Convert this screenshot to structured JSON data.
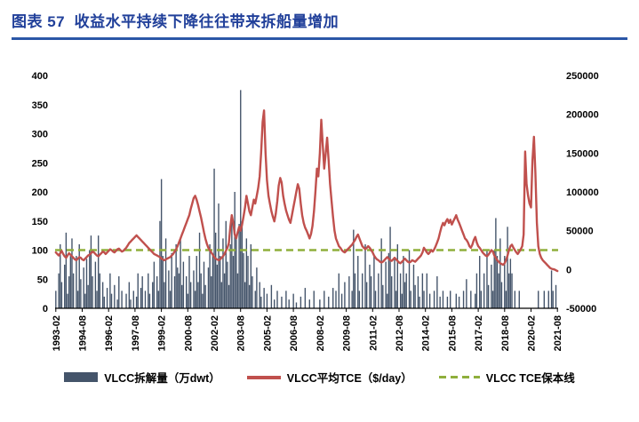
{
  "header": {
    "title": "图表 57  收益水平持续下降往往带来拆船量增加"
  },
  "legend": [
    {
      "label": "VLCC拆解量（万dwt）",
      "swatch": "bar"
    },
    {
      "label": "VLCC平均TCE（$/day）",
      "swatch": "line"
    },
    {
      "label": "VLCC TCE保本线",
      "swatch": "dashed"
    }
  ],
  "chart_data": {
    "type": "bar+line",
    "x_frequency": "monthly",
    "x_start": "1993-02",
    "x_end": "2021-08",
    "x_tick_step": 18,
    "x_ticks": [
      "1993-02",
      "1994-08",
      "1996-02",
      "1997-08",
      "1999-02",
      "2000-08",
      "2002-02",
      "2003-08",
      "2005-02",
      "2006-08",
      "2008-02",
      "2009-08",
      "2011-02",
      "2012-08",
      "2014-02",
      "2015-08",
      "2017-02",
      "2018-08",
      "2020-02",
      "2021-08"
    ],
    "left_axis": {
      "series": "VLCC拆解量（万dwt）",
      "min": 0,
      "max": 400,
      "ticks": [
        "400",
        "350",
        "300",
        "250",
        "200",
        "150",
        "100",
        "50",
        "0"
      ]
    },
    "right_axis": {
      "series": "VLCC平均TCE（$/day）",
      "min": -50000,
      "max": 250000,
      "ticks": [
        "250000",
        "200000",
        "150000",
        "100000",
        "50000",
        "0",
        "-50000"
      ]
    },
    "breakeven_value": 25000,
    "bar_values": [
      30,
      0,
      60,
      110,
      45,
      0,
      75,
      130,
      25,
      55,
      90,
      120,
      60,
      0,
      90,
      30,
      110,
      50,
      0,
      70,
      25,
      85,
      40,
      100,
      125,
      55,
      0,
      80,
      30,
      125,
      60,
      0,
      45,
      20,
      0,
      35,
      0,
      60,
      25,
      0,
      40,
      0,
      15,
      55,
      0,
      30,
      0,
      0,
      25,
      0,
      45,
      15,
      0,
      30,
      0,
      20,
      60,
      0,
      35,
      55,
      0,
      30,
      0,
      60,
      25,
      0,
      45,
      80,
      0,
      55,
      30,
      150,
      222,
      90,
      45,
      120,
      0,
      65,
      30,
      95,
      0,
      55,
      110,
      70,
      60,
      120,
      40,
      80,
      0,
      55,
      25,
      90,
      45,
      0,
      65,
      30,
      90,
      45,
      130,
      60,
      25,
      80,
      40,
      0,
      70,
      110,
      55,
      95,
      240,
      130,
      75,
      180,
      90,
      45,
      120,
      60,
      150,
      80,
      40,
      110,
      160,
      90,
      200,
      120,
      60,
      145,
      375,
      150,
      95,
      45,
      120,
      90,
      40,
      110,
      55,
      0,
      30,
      70,
      0,
      45,
      20,
      0,
      35,
      0,
      25,
      0,
      0,
      40,
      0,
      15,
      0,
      30,
      0,
      0,
      20,
      0,
      0,
      30,
      0,
      15,
      0,
      0,
      25,
      0,
      10,
      0,
      0,
      20,
      0,
      0,
      35,
      0,
      0,
      15,
      0,
      0,
      30,
      0,
      0,
      0,
      15,
      0,
      0,
      30,
      0,
      0,
      20,
      0,
      0,
      35,
      0,
      30,
      0,
      60,
      0,
      25,
      0,
      45,
      0,
      0,
      55,
      0,
      30,
      135,
      60,
      0,
      90,
      30,
      0,
      60,
      0,
      110,
      45,
      0,
      75,
      55,
      0,
      90,
      30,
      0,
      60,
      0,
      120,
      40,
      0,
      80,
      25,
      95,
      140,
      55,
      0,
      85,
      30,
      110,
      0,
      60,
      25,
      90,
      45,
      60,
      0,
      100,
      30,
      0,
      75,
      40,
      0,
      55,
      20,
      0,
      60,
      30,
      0,
      60,
      0,
      25,
      0,
      0,
      30,
      0,
      55,
      0,
      20,
      0,
      30,
      0,
      0,
      20,
      0,
      30,
      0,
      0,
      0,
      25,
      0,
      20,
      0,
      0,
      30,
      0,
      50,
      0,
      0,
      30,
      0,
      0,
      25,
      60,
      0,
      90,
      30,
      0,
      60,
      0,
      100,
      40,
      0,
      75,
      30,
      100,
      155,
      90,
      60,
      120,
      45,
      0,
      90,
      30,
      140,
      60,
      85,
      60,
      0,
      30,
      0,
      0,
      30,
      0,
      0,
      0,
      0,
      0,
      0,
      0,
      0,
      0,
      0,
      0,
      0,
      30,
      0,
      0,
      0,
      30,
      0,
      0,
      30,
      0,
      65,
      30,
      0,
      40,
      0
    ],
    "tce_values": [
      22000,
      20000,
      18000,
      21000,
      24000,
      20000,
      17000,
      15000,
      18000,
      21000,
      19000,
      17000,
      15000,
      13000,
      12000,
      14000,
      16000,
      15000,
      13000,
      12000,
      14000,
      16000,
      18000,
      19000,
      21000,
      23000,
      22000,
      20000,
      18000,
      17000,
      19000,
      21000,
      23000,
      22000,
      20000,
      22000,
      24000,
      26000,
      25000,
      23000,
      22000,
      24000,
      26000,
      27000,
      25000,
      23000,
      24000,
      26000,
      28000,
      31000,
      34000,
      36000,
      38000,
      40000,
      42000,
      44000,
      42000,
      40000,
      38000,
      36000,
      34000,
      32000,
      30000,
      28000,
      26000,
      24000,
      22000,
      20000,
      19000,
      18000,
      17000,
      16000,
      14000,
      13000,
      12000,
      13000,
      14000,
      15000,
      16000,
      18000,
      20000,
      23000,
      26000,
      30000,
      35000,
      40000,
      45000,
      50000,
      55000,
      60000,
      65000,
      70000,
      78000,
      85000,
      92000,
      95000,
      90000,
      83000,
      75000,
      67000,
      58000,
      48000,
      40000,
      33000,
      28000,
      25000,
      22000,
      19000,
      16000,
      14000,
      13000,
      12000,
      13000,
      15000,
      17000,
      20000,
      24000,
      28000,
      34000,
      55000,
      70000,
      60000,
      45000,
      40000,
      48000,
      55000,
      50000,
      58000,
      68000,
      80000,
      95000,
      85000,
      75000,
      70000,
      80000,
      90000,
      85000,
      95000,
      105000,
      120000,
      150000,
      190000,
      205000,
      150000,
      115000,
      95000,
      85000,
      75000,
      68000,
      62000,
      72000,
      88000,
      108000,
      118000,
      112000,
      95000,
      85000,
      76000,
      70000,
      64000,
      60000,
      70000,
      80000,
      90000,
      100000,
      110000,
      104000,
      85000,
      70000,
      60000,
      54000,
      50000,
      45000,
      40000,
      46000,
      56000,
      75000,
      100000,
      130000,
      120000,
      150000,
      193000,
      160000,
      130000,
      150000,
      170000,
      140000,
      110000,
      88000,
      68000,
      50000,
      40000,
      35000,
      30000,
      28000,
      25000,
      23000,
      22000,
      24000,
      26000,
      28000,
      30000,
      32000,
      35000,
      38000,
      42000,
      45000,
      40000,
      35000,
      30000,
      28000,
      26000,
      28000,
      30000,
      28000,
      25000,
      22000,
      18000,
      15000,
      13000,
      12000,
      10000,
      9000,
      10000,
      12000,
      14000,
      16000,
      14000,
      12000,
      11000,
      13000,
      15000,
      13000,
      11000,
      9000,
      8000,
      10000,
      12000,
      14000,
      12000,
      10000,
      9000,
      10000,
      12000,
      11000,
      10000,
      12000,
      14000,
      16000,
      18000,
      22000,
      28000,
      25000,
      22000,
      20000,
      22000,
      25000,
      23000,
      26000,
      30000,
      35000,
      40000,
      48000,
      55000,
      60000,
      57000,
      62000,
      65000,
      60000,
      64000,
      58000,
      62000,
      66000,
      70000,
      64000,
      60000,
      55000,
      50000,
      45000,
      40000,
      38000,
      35000,
      30000,
      28000,
      32000,
      38000,
      42000,
      35000,
      30000,
      28000,
      25000,
      22000,
      20000,
      18000,
      17000,
      19000,
      22000,
      25000,
      23000,
      18000,
      15000,
      12000,
      10000,
      8000,
      7000,
      6000,
      8000,
      12000,
      18000,
      25000,
      30000,
      32000,
      28000,
      25000,
      22000,
      20000,
      23000,
      26000,
      30000,
      45000,
      152000,
      110000,
      95000,
      85000,
      80000,
      140000,
      171000,
      125000,
      60000,
      30000,
      20000,
      15000,
      12000,
      10000,
      8000,
      6000,
      4000,
      2000,
      1000,
      500,
      0,
      -1000,
      -2000
    ],
    "colors": {
      "bar": "#44546A",
      "tce": "#C0504D",
      "breakeven": "#8FAF3C",
      "title": "#21409A",
      "rule": "#2B57A7"
    }
  }
}
